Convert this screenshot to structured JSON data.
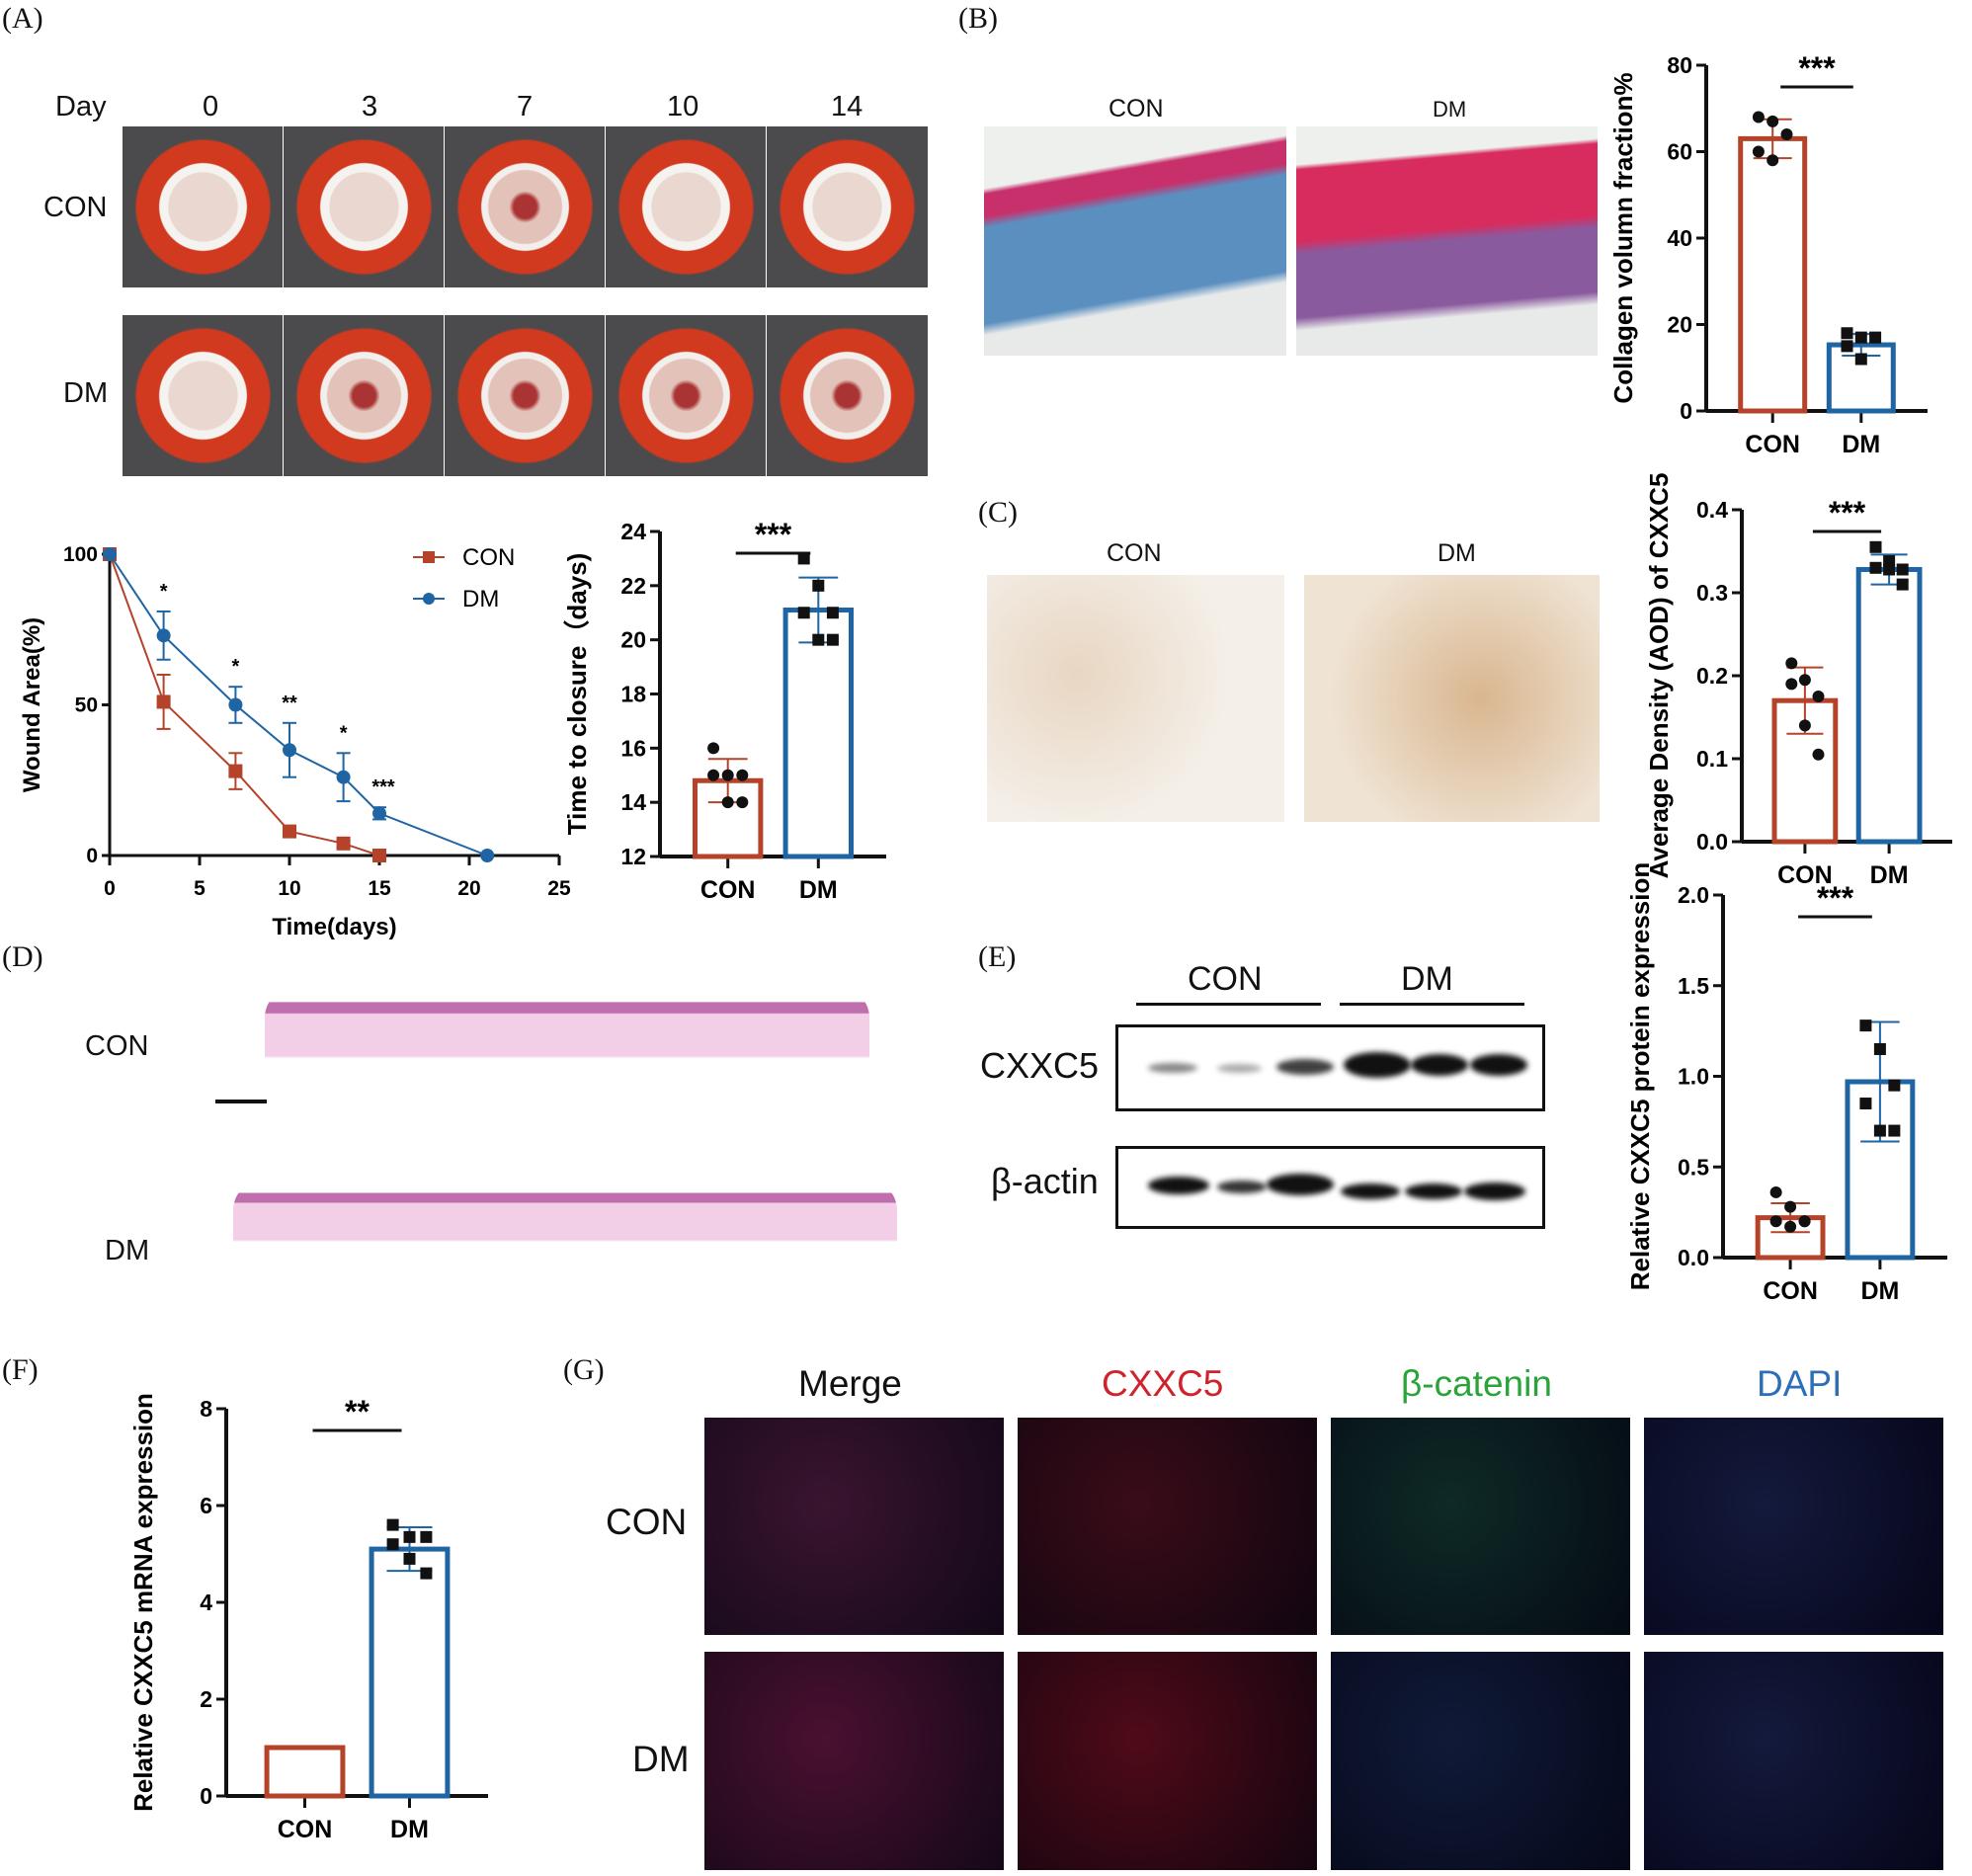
{
  "panels": {
    "A": "(A)",
    "B": "(B)",
    "C": "(C)",
    "D": "(D)",
    "E": "(E)",
    "F": "(F)",
    "G": "(G)"
  },
  "groups": {
    "con": "CON",
    "dm": "DM"
  },
  "colors": {
    "con": "#b5432a",
    "dm": "#1f64a3"
  },
  "panelA": {
    "day_label": "Day",
    "days": [
      "0",
      "3",
      "7",
      "10",
      "14"
    ]
  },
  "panelE": {
    "blot_rows": [
      "CXXC5",
      "β-actin"
    ]
  },
  "panelG": {
    "columns": [
      "Merge",
      "CXXC5",
      "β-catenin",
      "DAPI"
    ],
    "column_colors": [
      "#111111",
      "#d0222a",
      "#2aa339",
      "#2c6fb8"
    ]
  },
  "chart_data": [
    {
      "id": "wound",
      "type": "line",
      "xlabel": "Time(days)",
      "ylabel": "Wound Area(%)",
      "xlim": [
        0,
        25
      ],
      "ylim": [
        0,
        100
      ],
      "xticks": [
        0,
        5,
        10,
        15,
        20,
        25
      ],
      "yticks": [
        0,
        50,
        100
      ],
      "legend": "top-right",
      "series": [
        {
          "name": "CON",
          "x": [
            0,
            3,
            7,
            10,
            13,
            15
          ],
          "y": [
            100,
            51,
            28,
            8,
            4,
            0
          ],
          "err": [
            0,
            9,
            6,
            1,
            1,
            0
          ]
        },
        {
          "name": "DM",
          "x": [
            0,
            3,
            7,
            10,
            13,
            15,
            21
          ],
          "y": [
            100,
            73,
            50,
            35,
            26,
            14,
            0
          ],
          "err": [
            0,
            8,
            6,
            9,
            8,
            2,
            0
          ]
        }
      ],
      "annotations": [
        {
          "x": 3,
          "text": "*"
        },
        {
          "x": 7,
          "text": "*"
        },
        {
          "x": 10,
          "text": "**"
        },
        {
          "x": 13,
          "text": "*"
        },
        {
          "x": 15,
          "text": "***"
        }
      ]
    },
    {
      "id": "closure",
      "type": "bar",
      "ylabel": "Time to closure（days)",
      "ylim": [
        12,
        24
      ],
      "yticks": [
        12,
        14,
        16,
        18,
        20,
        22,
        24
      ],
      "categories": [
        "CON",
        "DM"
      ],
      "means": [
        14.8,
        21.1
      ],
      "sd": [
        0.8,
        1.2
      ],
      "points": [
        [
          16,
          15,
          15,
          15,
          14,
          14
        ],
        [
          23,
          22,
          21,
          21,
          20,
          20
        ]
      ],
      "sig": "***"
    },
    {
      "id": "collagen",
      "type": "bar",
      "ylabel": "Collagen volumn fraction%",
      "ylim": [
        0,
        80
      ],
      "yticks": [
        0,
        20,
        40,
        60,
        80
      ],
      "categories": [
        "CON",
        "DM"
      ],
      "means": [
        63,
        15.3
      ],
      "sd": [
        4.5,
        2.5
      ],
      "points": [
        [
          68,
          67,
          64,
          60,
          58
        ],
        [
          18,
          17,
          17,
          15,
          12
        ]
      ],
      "sig": "***"
    },
    {
      "id": "aod",
      "type": "bar",
      "ylabel": "Average Density (AOD) of CXXC5",
      "ylim": [
        0,
        0.4
      ],
      "yticks": [
        0.0,
        0.1,
        0.2,
        0.3,
        0.4
      ],
      "categories": [
        "CON",
        "DM"
      ],
      "means": [
        0.17,
        0.328
      ],
      "sd": [
        0.04,
        0.018
      ],
      "points": [
        [
          0.215,
          0.195,
          0.175,
          0.19,
          0.14,
          0.105
        ],
        [
          0.355,
          0.338,
          0.328,
          0.33,
          0.328,
          0.31
        ]
      ],
      "sig": "***"
    },
    {
      "id": "protein",
      "type": "bar",
      "ylabel": "Relative CXXC5 protein expression",
      "ylim": [
        0,
        2.0
      ],
      "yticks": [
        0.0,
        0.5,
        1.0,
        1.5,
        2.0
      ],
      "categories": [
        "CON",
        "DM"
      ],
      "means": [
        0.22,
        0.97
      ],
      "sd": [
        0.08,
        0.33
      ],
      "points": [
        [
          0.36,
          0.28,
          0.2,
          0.2,
          0.17,
          0.2
        ],
        [
          1.28,
          1.15,
          0.95,
          0.85,
          0.7,
          0.7
        ]
      ],
      "sig": "***"
    },
    {
      "id": "mrna",
      "type": "bar",
      "ylabel": "Relative CXXC5 mRNA expression",
      "ylim": [
        0,
        8
      ],
      "yticks": [
        0,
        2,
        4,
        6,
        8
      ],
      "categories": [
        "CON",
        "DM"
      ],
      "means": [
        1,
        5.1
      ],
      "sd": [
        0,
        0.45
      ],
      "points": [
        [],
        [
          5.6,
          5.35,
          5.35,
          5.2,
          4.9,
          4.6
        ]
      ],
      "sig": "**"
    }
  ]
}
